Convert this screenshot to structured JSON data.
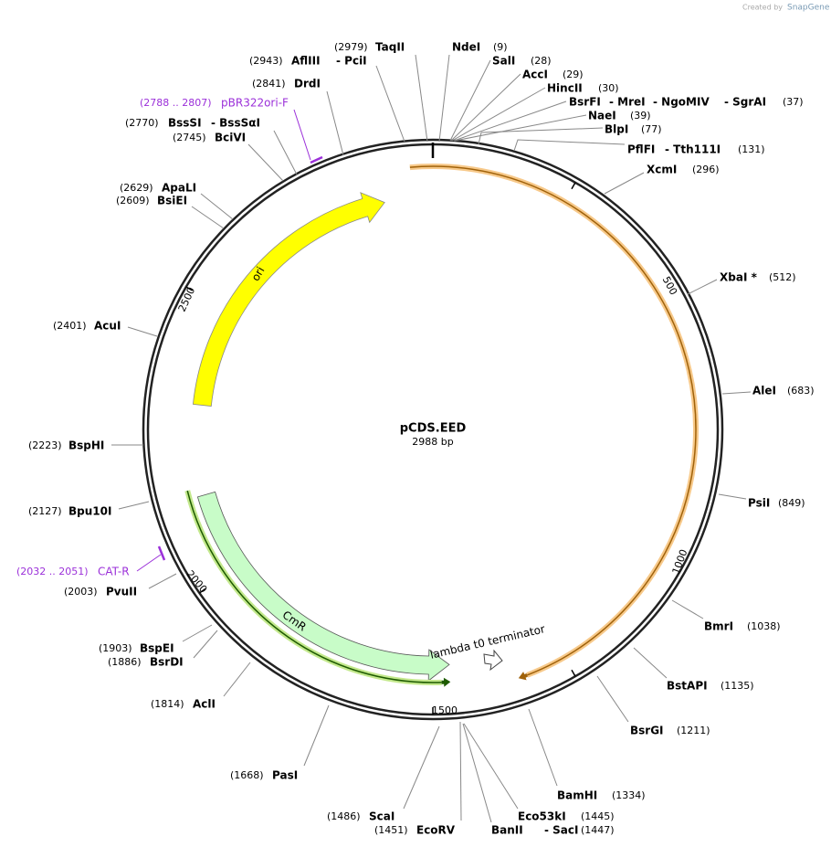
{
  "header": {
    "created_by": "Created by",
    "brand": "SnapGene"
  },
  "plasmid": {
    "name": "pCDS.EED",
    "size": "2988 bp"
  },
  "ticks": [
    500,
    1000,
    1500,
    2000,
    2500
  ],
  "features": [
    {
      "label": "ori"
    },
    {
      "label": "CmR"
    },
    {
      "label": "lambda t0 terminator"
    }
  ],
  "primers": [
    {
      "range": "(2788 .. 2807)",
      "name": "pBR322ori-F"
    },
    {
      "range": "(2032 .. 2051)",
      "name": "CAT-R"
    }
  ],
  "enzymes": [
    {
      "site": "(2979)",
      "names": [
        "TaqII"
      ]
    },
    {
      "site": "(2943)",
      "names": [
        "AflIII",
        "- PciI"
      ]
    },
    {
      "site": "(2841)",
      "names": [
        "DrdI"
      ]
    },
    {
      "site": "(2770)",
      "names": [
        "BssSI",
        "- BssSαI"
      ]
    },
    {
      "site": "(2745)",
      "names": [
        "BciVI"
      ]
    },
    {
      "site": "(2629)",
      "names": [
        "ApaLI"
      ]
    },
    {
      "site": "(2609)",
      "names": [
        "BsiEI"
      ]
    },
    {
      "site": "(2401)",
      "names": [
        "AcuI"
      ]
    },
    {
      "site": "(2223)",
      "names": [
        "BspHI"
      ]
    },
    {
      "site": "(2127)",
      "names": [
        "Bpu10I"
      ]
    },
    {
      "site": "(2003)",
      "names": [
        "PvuII"
      ]
    },
    {
      "site": "(1903)",
      "names": [
        "BspEI"
      ]
    },
    {
      "site": "(1886)",
      "names": [
        "BsrDI"
      ]
    },
    {
      "site": "(1814)",
      "names": [
        "AclI"
      ]
    },
    {
      "site": "(1668)",
      "names": [
        "PasI"
      ]
    },
    {
      "site": "(1486)",
      "names": [
        "ScaI"
      ]
    },
    {
      "site": "(1451)",
      "names": [
        "EcoRV"
      ]
    },
    {
      "site": "(1447)",
      "names": [
        "BanII",
        "- SacI"
      ]
    },
    {
      "site": "(1445)",
      "names": [
        "Eco53kI"
      ]
    },
    {
      "site": "(1334)",
      "names": [
        "BamHI"
      ]
    },
    {
      "site": "(1211)",
      "names": [
        "BsrGI"
      ]
    },
    {
      "site": "(1135)",
      "names": [
        "BstAPI"
      ]
    },
    {
      "site": "(1038)",
      "names": [
        "BmrI"
      ]
    },
    {
      "site": "(849)",
      "names": [
        "PsiI"
      ]
    },
    {
      "site": "(683)",
      "names": [
        "AleI"
      ]
    },
    {
      "site": "(512)",
      "names": [
        "XbaI *"
      ]
    },
    {
      "site": "(296)",
      "names": [
        "XcmI"
      ]
    },
    {
      "site": "(131)",
      "names": [
        "PflFI",
        "- Tth111I"
      ]
    },
    {
      "site": "(77)",
      "names": [
        "BlpI"
      ]
    },
    {
      "site": "(39)",
      "names": [
        "NaeI"
      ]
    },
    {
      "site": "(37)",
      "names": [
        "BsrFI",
        "- MreI",
        "- NgoMIV",
        "- SgrAI"
      ]
    },
    {
      "site": "(30)",
      "names": [
        "HincII"
      ]
    },
    {
      "site": "(29)",
      "names": [
        "AccI"
      ]
    },
    {
      "site": "(28)",
      "names": [
        "SalI"
      ]
    },
    {
      "site": "(9)",
      "names": [
        "NdeI"
      ]
    }
  ]
}
